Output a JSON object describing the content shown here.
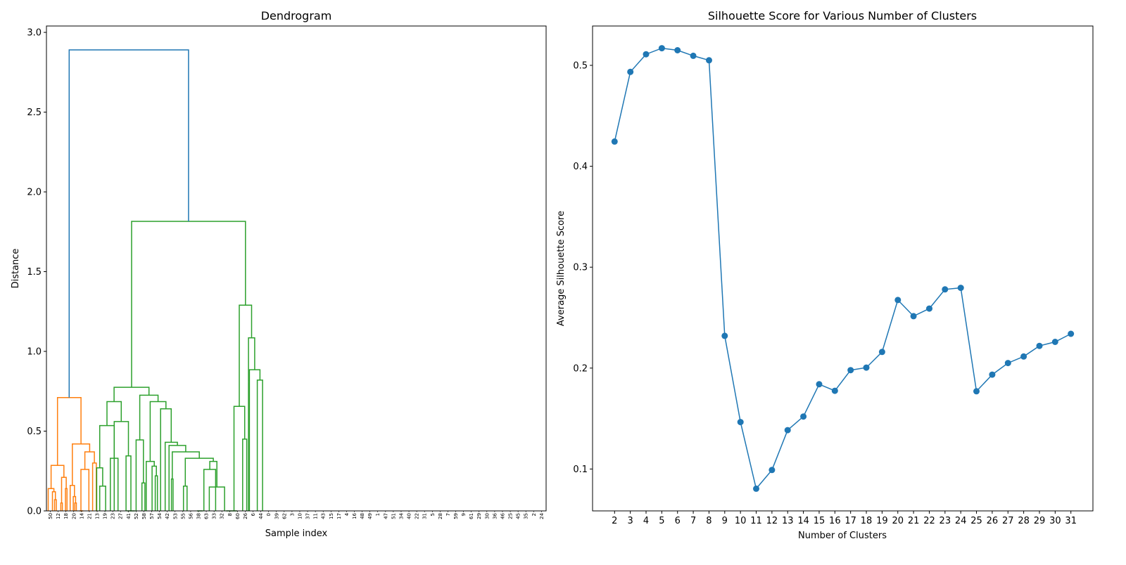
{
  "chart_data": [
    {
      "type": "dendrogram",
      "title": "Dendrogram",
      "xlabel": "Sample index",
      "ylabel": "Distance",
      "ylim": [
        0,
        3.04
      ],
      "yticks": [
        0.0,
        0.5,
        1.0,
        1.5,
        2.0,
        2.5,
        3.0
      ],
      "ytick_labels": [
        "0.0",
        "0.5",
        "1.0",
        "1.5",
        "2.0",
        "2.5",
        "3.0"
      ],
      "colors": {
        "orange": "#ff7f0e",
        "green": "#2ca02c",
        "blue": "#1f77b4"
      },
      "leaves": [
        "50",
        "12",
        "18",
        "20",
        "14",
        "21",
        "13",
        "19",
        "23",
        "27",
        "41",
        "52",
        "58",
        "57",
        "54",
        "42",
        "53",
        "55",
        "56",
        "38",
        "63",
        "33",
        "32",
        "8",
        "60",
        "26",
        "6",
        "44",
        "0",
        "39",
        "62",
        "3",
        "10",
        "37",
        "11",
        "43",
        "15",
        "17",
        "4",
        "16",
        "48",
        "49",
        "1",
        "47",
        "51",
        "34",
        "40",
        "22",
        "31",
        "5",
        "28",
        "7",
        "59",
        "9",
        "61",
        "29",
        "30",
        "36",
        "46",
        "25",
        "45",
        "35",
        "2",
        "24"
      ],
      "links": [
        {
          "x": [
            10.4,
            10.4,
            12.6,
            12.6
          ],
          "y": [
            0.0,
            0.07,
            0.07,
            0.0
          ],
          "color": "orange"
        },
        {
          "x": [
            7.7,
            7.7,
            11.5,
            11.5
          ],
          "y": [
            0.0,
            0.12,
            0.12,
            0.07
          ],
          "color": "orange"
        },
        {
          "x": [
            2.3,
            2.3,
            9.6,
            9.6
          ],
          "y": [
            0.0,
            0.14,
            0.14,
            0.12
          ],
          "color": "orange"
        },
        {
          "x": [
            18.4,
            18.4,
            20.4,
            20.4
          ],
          "y": [
            0.0,
            0.05,
            0.05,
            0.0
          ],
          "color": "orange"
        },
        {
          "x": [
            24.4,
            24.4,
            26.4,
            26.4
          ],
          "y": [
            0.0,
            0.14,
            0.14,
            0.0
          ],
          "color": "orange"
        },
        {
          "x": [
            19.4,
            19.4,
            25.4,
            25.4
          ],
          "y": [
            0.05,
            0.21,
            0.21,
            0.14
          ],
          "color": "orange"
        },
        {
          "x": [
            6.0,
            6.0,
            22.4,
            22.4
          ],
          "y": [
            0.14,
            0.285,
            0.285,
            0.21
          ],
          "color": "orange"
        },
        {
          "x": [
            36.4,
            36.4,
            38.4,
            38.4
          ],
          "y": [
            0.0,
            0.05,
            0.05,
            0.0
          ],
          "color": "orange"
        },
        {
          "x": [
            34.4,
            34.4,
            37.4,
            37.4
          ],
          "y": [
            0.0,
            0.09,
            0.09,
            0.05
          ],
          "color": "orange"
        },
        {
          "x": [
            30.4,
            30.4,
            35.9,
            35.9
          ],
          "y": [
            0.0,
            0.16,
            0.16,
            0.09
          ],
          "color": "orange"
        },
        {
          "x": [
            44.6,
            44.6,
            47.2,
            47.2
          ],
          "y": [
            0.0,
            0.0,
            0.0,
            0.0
          ],
          "color": "orange"
        },
        {
          "x": [
            42.5,
            42.5,
            45.9,
            45.9
          ],
          "y": [
            0.0,
            0.0,
            0.0,
            0.0
          ],
          "color": "orange"
        },
        {
          "x": [
            44.2,
            44.2,
            54.4,
            54.4
          ],
          "y": [
            0.0,
            0.26,
            0.26,
            0.0
          ],
          "color": "orange"
        },
        {
          "x": [
            59.2,
            59.2,
            63.9,
            63.9
          ],
          "y": [
            0.0,
            0.3,
            0.3,
            0.0
          ],
          "color": "orange"
        },
        {
          "x": [
            49.3,
            49.3,
            61.5,
            61.5
          ],
          "y": [
            0.26,
            0.37,
            0.37,
            0.3
          ],
          "color": "orange"
        },
        {
          "x": [
            33.2,
            33.2,
            55.4,
            55.4
          ],
          "y": [
            0.16,
            0.42,
            0.42,
            0.37
          ],
          "color": "orange"
        },
        {
          "x": [
            14.2,
            14.2,
            44.3,
            44.3
          ],
          "y": [
            0.285,
            0.71,
            0.71,
            0.42
          ],
          "color": "orange"
        },
        {
          "x": [
            68.3,
            68.3,
            75.9,
            75.9
          ],
          "y": [
            0.0,
            0.155,
            0.155,
            0.0
          ],
          "color": "green"
        },
        {
          "x": [
            64.5,
            64.5,
            72.1,
            72.1
          ],
          "y": [
            0.0,
            0.27,
            0.27,
            0.155
          ],
          "color": "green"
        },
        {
          "x": [
            82.0,
            82.0,
            91.8,
            91.8
          ],
          "y": [
            0.0,
            0.33,
            0.33,
            0.0
          ],
          "color": "green"
        },
        {
          "x": [
            68.3,
            68.3,
            86.9,
            86.9
          ],
          "y": [
            0.27,
            0.535,
            0.535,
            0.33
          ],
          "color": "green"
        },
        {
          "x": [
            103.2,
            103.2,
            113.4,
            113.4
          ],
          "y": [
            0.0,
            0.0,
            0.0,
            0.0
          ],
          "color": "green"
        },
        {
          "x": [
            102.1,
            102.1,
            108.3,
            108.3
          ],
          "y": [
            0.0,
            0.345,
            0.345,
            0.0
          ],
          "color": "green"
        },
        {
          "x": [
            86.9,
            86.9,
            105.2,
            105.2
          ],
          "y": [
            0.0,
            0.56,
            0.56,
            0.345
          ],
          "color": "green"
        },
        {
          "x": [
            77.6,
            77.6,
            96.0,
            96.0
          ],
          "y": [
            0.535,
            0.685,
            0.685,
            0.56
          ],
          "color": "green"
        },
        {
          "x": [
            122.5,
            122.5,
            126.3,
            126.3
          ],
          "y": [
            0.0,
            0.175,
            0.175,
            0.0
          ],
          "color": "green"
        },
        {
          "x": [
            115.0,
            115.0,
            124.4,
            124.4
          ],
          "y": [
            0.0,
            0.445,
            0.445,
            0.175
          ],
          "color": "green"
        },
        {
          "x": [
            139.6,
            139.6,
            142.4,
            142.4
          ],
          "y": [
            0.0,
            0.22,
            0.22,
            0.0
          ],
          "color": "green"
        },
        {
          "x": [
            135.5,
            135.5,
            141.0,
            141.0
          ],
          "y": [
            0.0,
            0.28,
            0.28,
            0.22
          ],
          "color": "green"
        },
        {
          "x": [
            128.0,
            128.0,
            138.3,
            138.3
          ],
          "y": [
            0.0,
            0.31,
            0.31,
            0.28
          ],
          "color": "green"
        },
        {
          "x": [
            160.3,
            160.3,
            162.4,
            162.4
          ],
          "y": [
            0.0,
            0.2,
            0.2,
            0.0
          ],
          "color": "green"
        },
        {
          "x": [
            175.8,
            175.8,
            180.4,
            180.4
          ],
          "y": [
            0.0,
            0.155,
            0.155,
            0.0
          ],
          "color": "green"
        },
        {
          "x": [
            193.3,
            193.3,
            200.5,
            200.5
          ],
          "y": [
            0.0,
            0.0,
            0.0,
            0.0
          ],
          "color": "green"
        },
        {
          "x": [
            202.0,
            202.0,
            217.0,
            217.0
          ],
          "y": [
            0.0,
            0.26,
            0.26,
            0.0
          ],
          "color": "green"
        },
        {
          "x": [
            208.9,
            208.9,
            228.5,
            228.5
          ],
          "y": [
            0.0,
            0.15,
            0.15,
            0.0
          ],
          "color": "green"
        },
        {
          "x": [
            209.5,
            209.5,
            218.7,
            218.7
          ],
          "y": [
            0.26,
            0.31,
            0.31,
            0.15
          ],
          "color": "green"
        },
        {
          "x": [
            178.1,
            178.1,
            214.1,
            214.1
          ],
          "y": [
            0.155,
            0.33,
            0.33,
            0.31
          ],
          "color": "green"
        },
        {
          "x": [
            161.4,
            161.4,
            196.1,
            196.1
          ],
          "y": [
            0.2,
            0.37,
            0.37,
            0.33
          ],
          "color": "green"
        },
        {
          "x": [
            157.3,
            157.3,
            178.7,
            178.7
          ],
          "y": [
            0.0,
            0.41,
            0.41,
            0.37
          ],
          "color": "green"
        },
        {
          "x": [
            152.3,
            152.3,
            168.0,
            168.0
          ],
          "y": [
            0.0,
            0.43,
            0.43,
            0.41
          ],
          "color": "green"
        },
        {
          "x": [
            146.4,
            146.4,
            160.1,
            160.1
          ],
          "y": [
            0.0,
            0.64,
            0.64,
            0.43
          ],
          "color": "green"
        },
        {
          "x": [
            133.1,
            133.1,
            153.3,
            153.3
          ],
          "y": [
            0.31,
            0.685,
            0.685,
            0.64
          ],
          "color": "green"
        },
        {
          "x": [
            119.7,
            119.7,
            143.2,
            143.2
          ],
          "y": [
            0.445,
            0.725,
            0.725,
            0.685
          ],
          "color": "green"
        },
        {
          "x": [
            86.8,
            86.8,
            131.5,
            131.5
          ],
          "y": [
            0.685,
            0.775,
            0.775,
            0.725
          ],
          "color": "green"
        },
        {
          "x": [
            230.6,
            230.6,
            244.6,
            244.6
          ],
          "y": [
            0.0,
            0.0,
            0.0,
            0.0
          ],
          "color": "green"
        },
        {
          "x": [
            251.7,
            251.7,
            256.9,
            256.9
          ],
          "y": [
            0.0,
            0.45,
            0.45,
            0.0
          ],
          "color": "green"
        },
        {
          "x": [
            240.6,
            240.6,
            254.3,
            254.3
          ],
          "y": [
            0.0,
            0.655,
            0.655,
            0.45
          ],
          "color": "green"
        },
        {
          "x": [
            270.5,
            270.5,
            277.3,
            277.3
          ],
          "y": [
            0.0,
            0.82,
            0.82,
            0.0
          ],
          "color": "green"
        },
        {
          "x": [
            260.4,
            260.4,
            273.9,
            273.9
          ],
          "y": [
            0.0,
            0.885,
            0.885,
            0.82
          ],
          "color": "green"
        },
        {
          "x": [
            259.2,
            259.2,
            267.1,
            267.1
          ],
          "y": [
            0.81,
            1.085,
            1.085,
            0.885
          ],
          "color": "green"
        },
        {
          "x": [
            247.4,
            247.4,
            263.2,
            263.2
          ],
          "y": [
            0.655,
            1.29,
            1.29,
            1.085
          ],
          "color": "green"
        },
        {
          "x": [
            109.2,
            109.2,
            255.3,
            255.3
          ],
          "y": [
            0.775,
            1.815,
            1.815,
            1.29
          ],
          "color": "green"
        },
        {
          "x": [
            29.2,
            29.2,
            182.3,
            182.3
          ],
          "y": [
            0.71,
            2.89,
            2.89,
            1.815
          ],
          "color": "blue"
        }
      ],
      "extra_stems": [
        {
          "x": 259.2,
          "y": [
            0.0,
            0.81
          ],
          "color": "green"
        }
      ]
    },
    {
      "type": "line",
      "title": "Silhouette Score for Various Number of Clusters",
      "xlabel": "Number of Clusters",
      "ylabel": "Average Silhouette Score",
      "color": "#1f77b4",
      "xlim": [
        0.6,
        32.4
      ],
      "ylim": [
        0.0585,
        0.539
      ],
      "yticks": [
        0.1,
        0.2,
        0.3,
        0.4,
        0.5
      ],
      "ytick_labels": [
        "0.1",
        "0.2",
        "0.3",
        "0.4",
        "0.5"
      ],
      "x": [
        2,
        3,
        4,
        5,
        6,
        7,
        8,
        9,
        10,
        11,
        12,
        13,
        14,
        15,
        16,
        17,
        18,
        19,
        20,
        21,
        22,
        23,
        24,
        25,
        26,
        27,
        28,
        29,
        30,
        31
      ],
      "xtick_labels": [
        "2",
        "3",
        "4",
        "5",
        "6",
        "7",
        "8",
        "9",
        "10",
        "11",
        "12",
        "13",
        "14",
        "15",
        "16",
        "17",
        "18",
        "19",
        "20",
        "21",
        "22",
        "23",
        "24",
        "25",
        "26",
        "27",
        "28",
        "29",
        "30",
        "31"
      ],
      "y": [
        0.4245,
        0.4935,
        0.511,
        0.517,
        0.515,
        0.5095,
        0.505,
        0.232,
        0.1465,
        0.0805,
        0.099,
        0.1385,
        0.152,
        0.184,
        0.1775,
        0.198,
        0.2005,
        0.216,
        0.2675,
        0.2515,
        0.259,
        0.278,
        0.2795,
        0.177,
        0.1935,
        0.205,
        0.2115,
        0.222,
        0.226,
        0.234
      ]
    }
  ]
}
